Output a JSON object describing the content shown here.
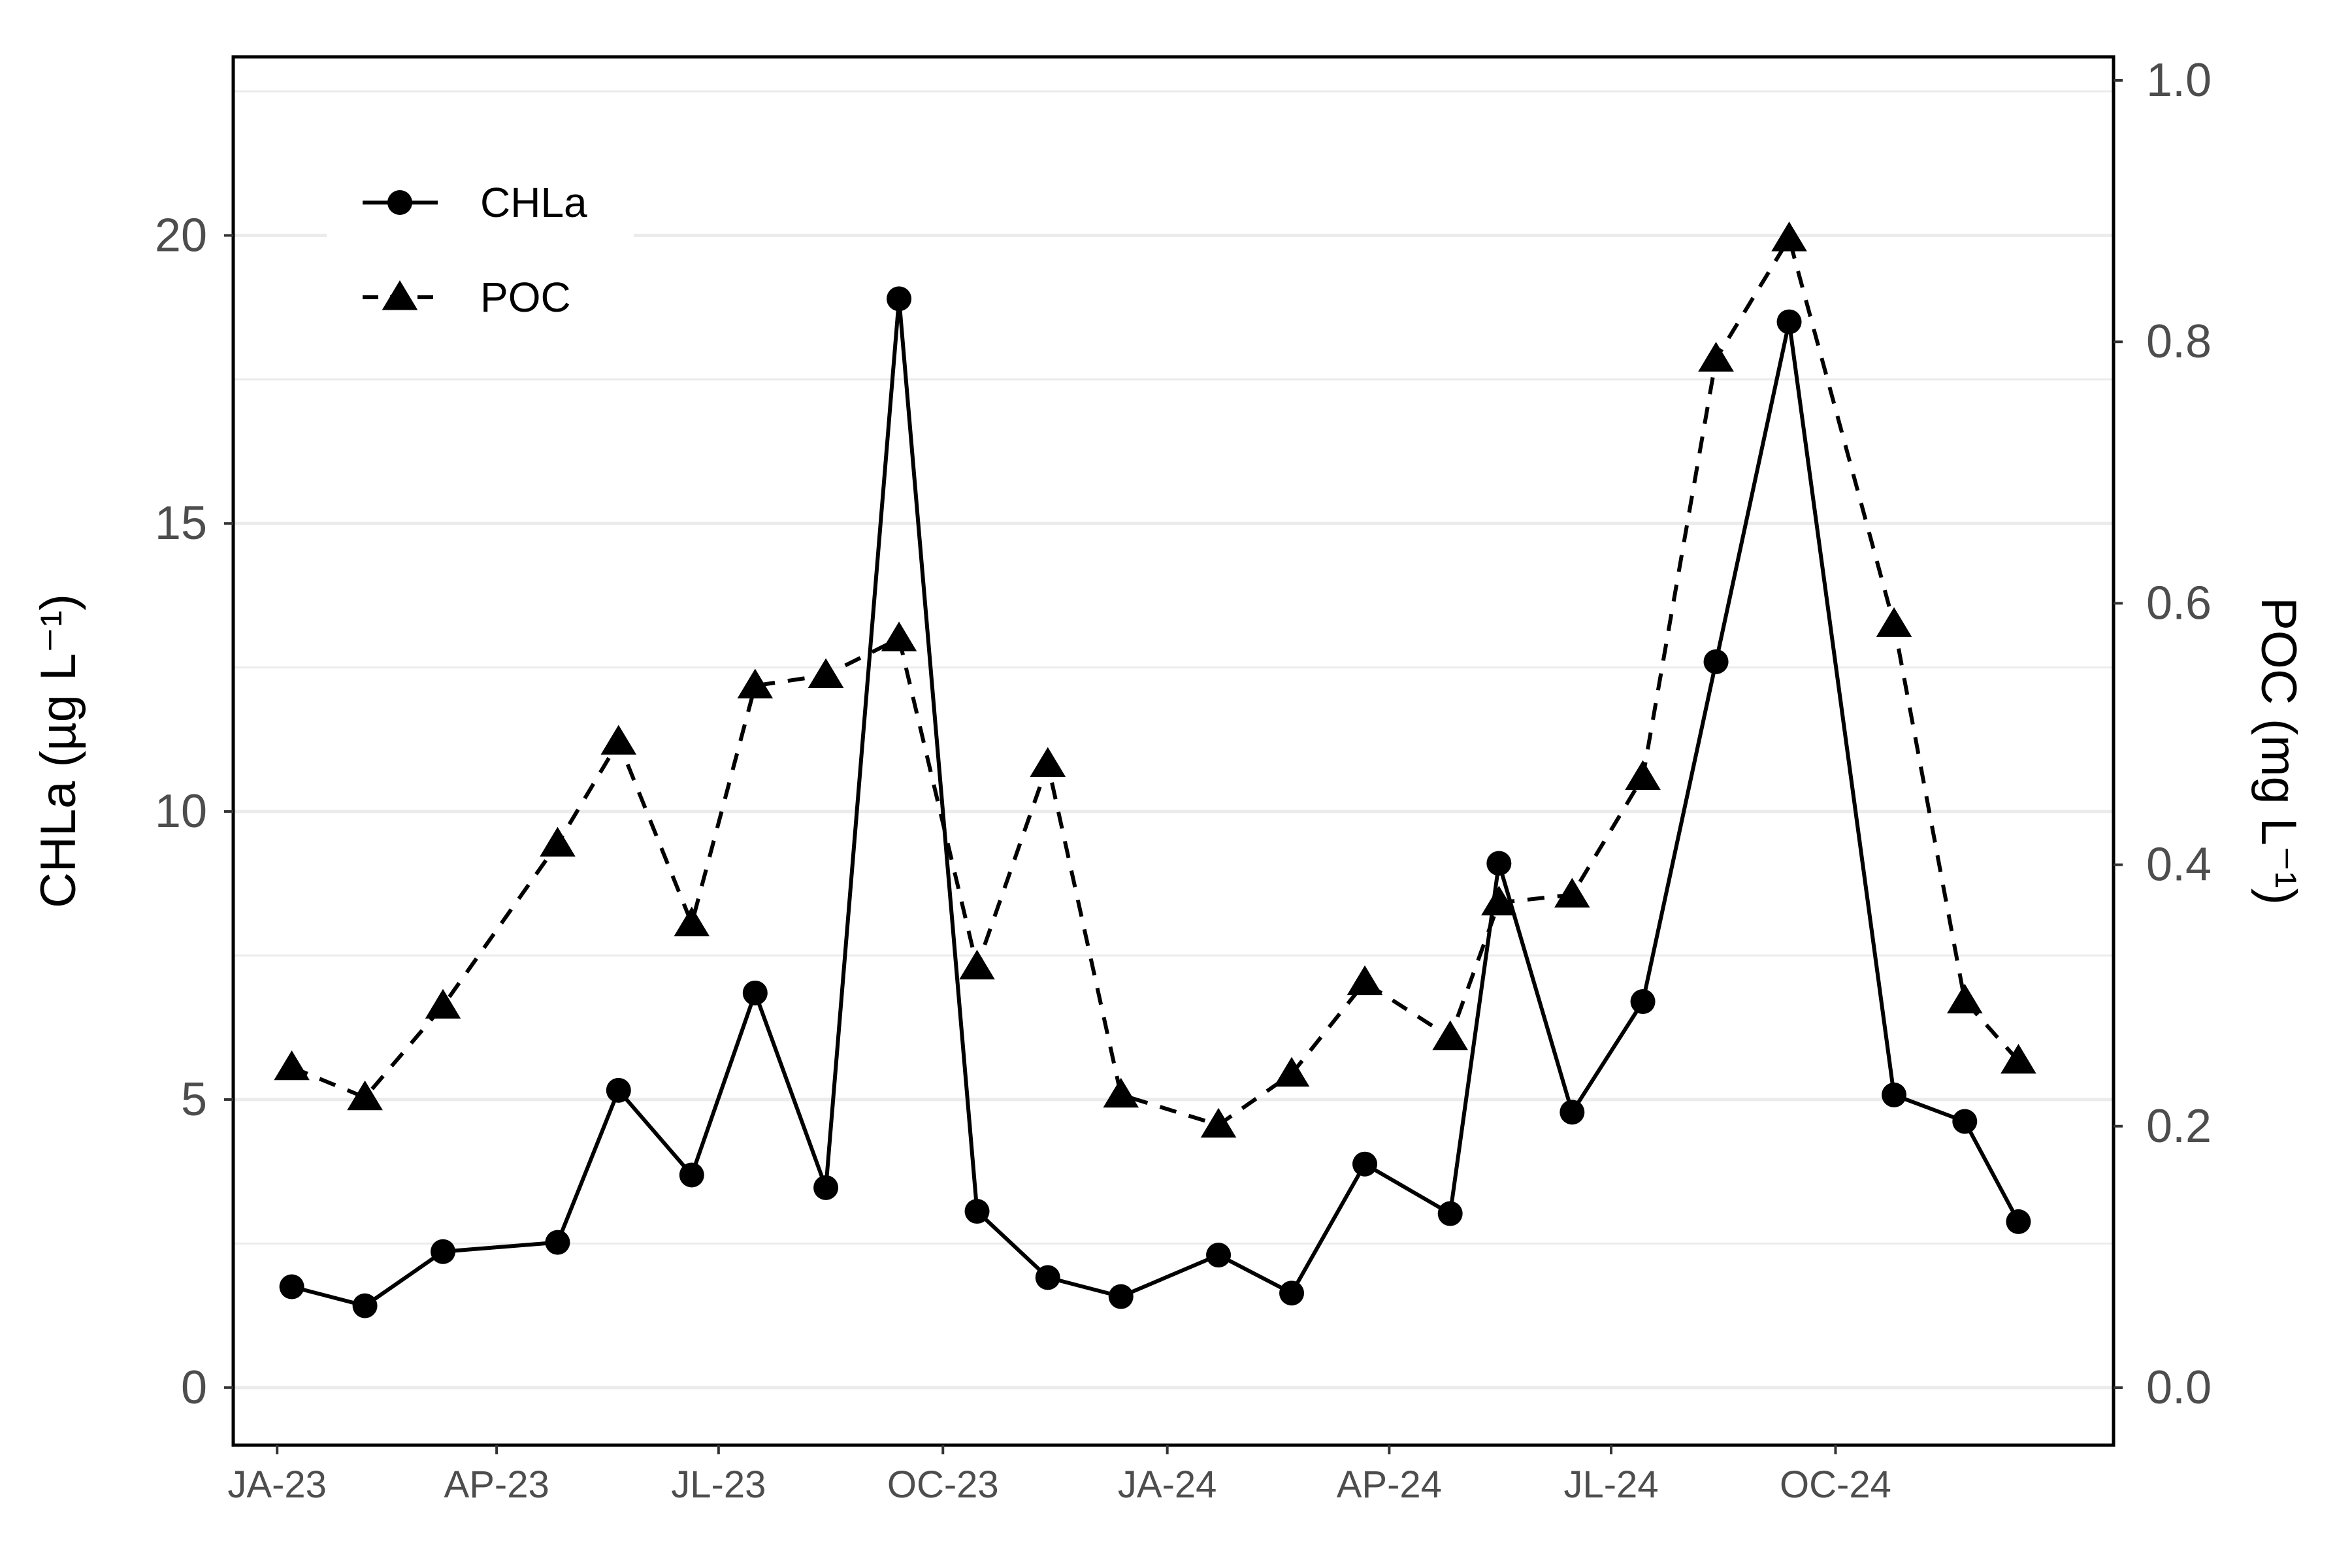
{
  "chart_data": {
    "type": "line",
    "y_left": {
      "label": "CHLa (µg L⁻¹)",
      "range": [
        -1.0,
        23.1
      ],
      "ticks": [
        0,
        5,
        10,
        15,
        20
      ]
    },
    "y_right": {
      "label": "POC (mg L⁻¹)",
      "range": [
        -0.044,
        1.018
      ],
      "ticks": [
        "0.0",
        "0.2",
        "0.4",
        "0.6",
        "0.8",
        "1.0"
      ]
    },
    "x_axis": {
      "range": [
        "2022-12-14",
        "2025-01-23"
      ],
      "ticks": [
        {
          "date": "2023-01-01",
          "label": "JA-23"
        },
        {
          "date": "2023-04-01",
          "label": "AP-23"
        },
        {
          "date": "2023-07-01",
          "label": "JL-23"
        },
        {
          "date": "2023-10-01",
          "label": "OC-23"
        },
        {
          "date": "2024-01-01",
          "label": "JA-24"
        },
        {
          "date": "2024-04-01",
          "label": "AP-24"
        },
        {
          "date": "2024-07-01",
          "label": "JL-24"
        },
        {
          "date": "2024-10-01",
          "label": "OC-24"
        }
      ]
    },
    "grid": "horizontal",
    "legend_position": "top-left",
    "series": [
      {
        "name": "CHLa",
        "axis": "left",
        "line_style": "solid",
        "marker": "circle",
        "points": [
          {
            "x": "2023-01-07",
            "y": 1.75
          },
          {
            "x": "2023-02-06",
            "y": 1.42
          },
          {
            "x": "2023-03-10",
            "y": 2.36
          },
          {
            "x": "2023-04-26",
            "y": 2.52
          },
          {
            "x": "2023-05-21",
            "y": 5.16
          },
          {
            "x": "2023-06-20",
            "y": 3.69
          },
          {
            "x": "2023-07-16",
            "y": 6.85
          },
          {
            "x": "2023-08-14",
            "y": 3.47
          },
          {
            "x": "2023-09-13",
            "y": 18.9
          },
          {
            "x": "2023-10-15",
            "y": 3.06
          },
          {
            "x": "2023-11-13",
            "y": 1.91
          },
          {
            "x": "2023-12-13",
            "y": 1.58
          },
          {
            "x": "2024-01-22",
            "y": 2.3
          },
          {
            "x": "2024-02-21",
            "y": 1.64
          },
          {
            "x": "2024-03-22",
            "y": 3.88
          },
          {
            "x": "2024-04-26",
            "y": 3.02
          },
          {
            "x": "2024-05-16",
            "y": 9.1
          },
          {
            "x": "2024-06-15",
            "y": 4.78
          },
          {
            "x": "2024-07-14",
            "y": 6.7
          },
          {
            "x": "2024-08-13",
            "y": 12.6
          },
          {
            "x": "2024-09-12",
            "y": 18.5
          },
          {
            "x": "2024-10-25",
            "y": 5.08
          },
          {
            "x": "2024-11-23",
            "y": 4.62
          },
          {
            "x": "2024-12-15",
            "y": 2.88
          }
        ]
      },
      {
        "name": "POC",
        "axis": "right",
        "line_style": "dashed",
        "marker": "triangle",
        "points": [
          {
            "x": "2023-01-07",
            "y": 0.245
          },
          {
            "x": "2023-02-06",
            "y": 0.222
          },
          {
            "x": "2023-03-10",
            "y": 0.292
          },
          {
            "x": "2023-04-26",
            "y": 0.416
          },
          {
            "x": "2023-05-21",
            "y": 0.494
          },
          {
            "x": "2023-06-20",
            "y": 0.355
          },
          {
            "x": "2023-07-16",
            "y": 0.537
          },
          {
            "x": "2023-08-14",
            "y": 0.545
          },
          {
            "x": "2023-09-13",
            "y": 0.573
          },
          {
            "x": "2023-10-15",
            "y": 0.322
          },
          {
            "x": "2023-11-13",
            "y": 0.477
          },
          {
            "x": "2023-12-13",
            "y": 0.224
          },
          {
            "x": "2024-01-22",
            "y": 0.201
          },
          {
            "x": "2024-02-21",
            "y": 0.24
          },
          {
            "x": "2024-03-22",
            "y": 0.31
          },
          {
            "x": "2024-04-26",
            "y": 0.268
          },
          {
            "x": "2024-05-16",
            "y": 0.371
          },
          {
            "x": "2024-06-15",
            "y": 0.377
          },
          {
            "x": "2024-07-14",
            "y": 0.467
          },
          {
            "x": "2024-08-13",
            "y": 0.787
          },
          {
            "x": "2024-09-12",
            "y": 0.879
          },
          {
            "x": "2024-10-25",
            "y": 0.584
          },
          {
            "x": "2024-11-23",
            "y": 0.296
          },
          {
            "x": "2024-12-15",
            "y": 0.25
          }
        ]
      }
    ]
  }
}
